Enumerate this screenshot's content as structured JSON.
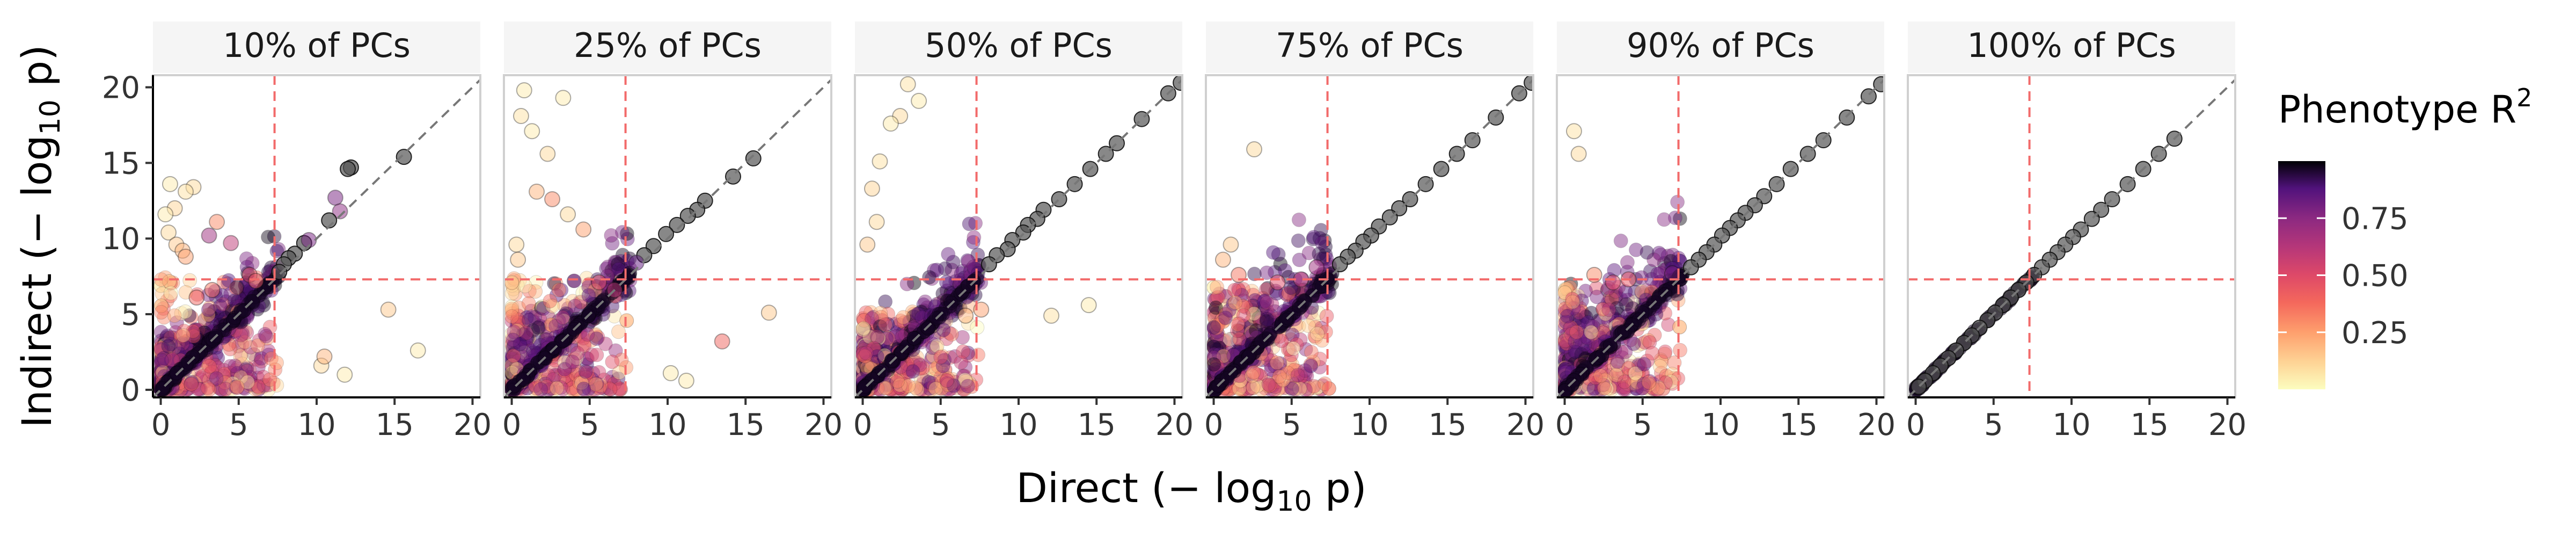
{
  "chart_data": {
    "type": "scatter",
    "facets": [
      "10% of PCs",
      "25% of PCs",
      "50% of PCs",
      "75% of PCs",
      "90% of PCs",
      "100% of PCs"
    ],
    "xlabel": "Direct",
    "xlabel_unit": "(− log10 p)",
    "ylabel": "Indirect",
    "ylabel_unit": "(− log10 p)",
    "xlim": [
      -0.5,
      20.5
    ],
    "ylim": [
      -0.5,
      20.8
    ],
    "x_ticks": [
      "0",
      "5",
      "10",
      "15",
      "20"
    ],
    "y_ticks": [
      "0",
      "5",
      "10",
      "15",
      "20"
    ],
    "significance_threshold": 7.3,
    "reference_line": "y = x",
    "color_scale": {
      "title": "Phenotype R2",
      "palette": "magma",
      "range": [
        0,
        1
      ],
      "ticks": [
        "0.25",
        "0.50",
        "0.75"
      ]
    },
    "points_by_facet": [
      {
        "x": [
          12.2,
          12.0,
          11.2,
          11.5,
          10.8,
          9.2,
          8.6,
          8.2,
          7.9,
          7.6,
          9.5,
          3.1,
          4.5,
          5.7,
          6.1,
          2.1,
          1.6,
          0.9,
          0.6,
          3.6,
          14.6,
          10.3,
          11.8,
          16.5,
          0.3,
          0.5,
          1.0,
          1.4,
          1.6,
          15.6,
          10.5,
          2.3,
          3.3
        ],
        "y": [
          14.7,
          14.6,
          12.7,
          11.8,
          11.2,
          9.7,
          9.0,
          8.7,
          8.3,
          7.8,
          9.9,
          10.2,
          9.7,
          7.6,
          7.2,
          13.4,
          13.1,
          12.0,
          13.6,
          11.1,
          5.3,
          1.6,
          1.0,
          2.6,
          11.6,
          10.4,
          9.6,
          9.2,
          8.8,
          15.4,
          2.2,
          6.1,
          6.6
        ],
        "r": [
          0.95,
          0.9,
          0.8,
          0.75,
          0.95,
          0.9,
          0.95,
          0.9,
          0.95,
          0.9,
          0.8,
          0.7,
          0.6,
          0.5,
          0.45,
          0.1,
          0.08,
          0.12,
          0.05,
          0.3,
          0.15,
          0.1,
          0.05,
          0.05,
          0.05,
          0.1,
          0.15,
          0.2,
          0.25,
          0.9,
          0.2,
          0.4,
          0.35
        ]
      },
      {
        "x": [
          15.5,
          14.2,
          12.4,
          11.9,
          11.3,
          10.6,
          9.9,
          9.1,
          8.5,
          8.0,
          0.8,
          0.6,
          1.3,
          2.3,
          3.3,
          1.6,
          2.6,
          3.6,
          4.6,
          13.5,
          16.5,
          10.2,
          11.2,
          6.6,
          5.6,
          0.3,
          0.4
        ],
        "y": [
          15.3,
          14.1,
          12.5,
          11.9,
          11.5,
          10.9,
          10.3,
          9.5,
          8.9,
          8.4,
          19.8,
          18.1,
          17.1,
          15.6,
          19.3,
          13.1,
          12.6,
          11.6,
          10.6,
          3.2,
          5.1,
          1.1,
          0.6,
          6.6,
          7.1,
          9.6,
          8.6
        ],
        "r": [
          0.9,
          0.9,
          0.95,
          0.9,
          0.95,
          0.9,
          0.95,
          0.9,
          0.9,
          0.85,
          0.05,
          0.08,
          0.05,
          0.1,
          0.05,
          0.2,
          0.3,
          0.1,
          0.25,
          0.4,
          0.15,
          0.05,
          0.05,
          0.6,
          0.5,
          0.1,
          0.15
        ]
      },
      {
        "x": [
          20.4,
          19.6,
          17.9,
          16.3,
          15.6,
          14.6,
          13.6,
          12.6,
          11.6,
          11.2,
          10.6,
          10.3,
          9.6,
          9.3,
          8.6,
          8.1,
          2.9,
          3.6,
          2.4,
          1.8,
          1.1,
          0.6,
          0.9,
          14.5,
          12.1,
          6.6,
          7.6,
          0.3
        ],
        "y": [
          20.3,
          19.6,
          17.9,
          16.3,
          15.6,
          14.6,
          13.6,
          12.6,
          11.9,
          11.3,
          10.9,
          10.4,
          9.9,
          9.3,
          8.9,
          8.3,
          20.2,
          19.1,
          18.1,
          17.6,
          15.1,
          13.3,
          11.1,
          5.6,
          4.9,
          4.9,
          5.3,
          9.6
        ],
        "r": [
          0.95,
          0.9,
          0.95,
          0.9,
          0.95,
          0.9,
          0.95,
          0.9,
          0.95,
          0.9,
          0.95,
          0.9,
          0.95,
          0.9,
          0.95,
          0.9,
          0.08,
          0.05,
          0.1,
          0.05,
          0.08,
          0.12,
          0.1,
          0.05,
          0.08,
          0.2,
          0.25,
          0.15
        ]
      },
      {
        "x": [
          20.4,
          19.6,
          18.1,
          16.6,
          15.6,
          14.6,
          13.6,
          12.6,
          11.9,
          11.3,
          10.6,
          10.1,
          9.6,
          9.1,
          8.6,
          8.1,
          2.6,
          1.1,
          0.6,
          1.6,
          4.1,
          5.6,
          6.6
        ],
        "y": [
          20.3,
          19.6,
          18.0,
          16.5,
          15.6,
          14.6,
          13.6,
          12.6,
          12.0,
          11.4,
          10.8,
          10.2,
          9.8,
          9.2,
          8.8,
          8.3,
          15.9,
          9.6,
          8.6,
          7.6,
          7.1,
          7.3,
          8.1
        ],
        "r": [
          0.95,
          0.9,
          0.95,
          0.9,
          0.95,
          0.9,
          0.95,
          0.9,
          0.95,
          0.9,
          0.95,
          0.9,
          0.95,
          0.9,
          0.95,
          0.9,
          0.1,
          0.15,
          0.2,
          0.35,
          0.5,
          0.6,
          0.7
        ]
      },
      {
        "x": [
          20.3,
          19.5,
          18.1,
          16.6,
          15.6,
          14.5,
          13.6,
          12.8,
          12.2,
          11.6,
          11.1,
          10.6,
          10.1,
          9.6,
          9.1,
          8.6,
          8.1,
          0.6,
          0.9,
          1.9,
          3.1,
          4.1,
          6.9
        ],
        "y": [
          20.2,
          19.4,
          18.0,
          16.5,
          15.6,
          14.6,
          13.6,
          12.8,
          12.2,
          11.7,
          11.2,
          10.7,
          10.2,
          9.6,
          9.1,
          8.6,
          8.1,
          17.1,
          15.6,
          7.6,
          7.1,
          7.3,
          7.7
        ],
        "r": [
          0.95,
          0.9,
          0.95,
          0.9,
          0.95,
          0.9,
          0.95,
          0.9,
          0.95,
          0.9,
          0.95,
          0.9,
          0.95,
          0.9,
          0.95,
          0.9,
          0.95,
          0.08,
          0.1,
          0.3,
          0.5,
          0.45,
          0.8
        ]
      },
      {
        "x": [
          16.6,
          15.6,
          14.6,
          13.6,
          12.6,
          11.9,
          11.3,
          10.6,
          10.1,
          9.6,
          9.1,
          8.6,
          8.1,
          7.6,
          7.1,
          6.6,
          6.1,
          5.6,
          5.1,
          4.6,
          4.1,
          3.6,
          3.1,
          2.6,
          2.1,
          1.6,
          1.1,
          0.6,
          0.2
        ],
        "y": [
          16.6,
          15.6,
          14.6,
          13.6,
          12.6,
          11.9,
          11.3,
          10.6,
          10.1,
          9.6,
          9.1,
          8.6,
          8.1,
          7.6,
          7.1,
          6.6,
          6.1,
          5.6,
          5.1,
          4.6,
          4.1,
          3.6,
          3.1,
          2.6,
          2.1,
          1.6,
          1.1,
          0.6,
          0.2
        ],
        "r": [
          0.95,
          0.95,
          0.95,
          0.95,
          0.95,
          0.95,
          0.95,
          0.95,
          0.95,
          0.95,
          0.95,
          0.95,
          0.95,
          0.95,
          0.95,
          0.95,
          0.95,
          0.95,
          0.95,
          0.95,
          0.95,
          0.95,
          0.95,
          0.95,
          0.95,
          0.95,
          0.95,
          0.95,
          0.95
        ]
      }
    ],
    "cloud_spread_by_facet": [
      {
        "high_r_y": 4.0,
        "low_r_x": 7.5,
        "low_r_y": 7.5
      },
      {
        "high_r_y": 5.0,
        "low_r_x": 7.5,
        "low_r_y": 7.5
      },
      {
        "high_r_y": 4.8,
        "low_r_x": 7.5,
        "low_r_y": 6.0
      },
      {
        "high_r_y": 6.8,
        "low_r_x": 7.5,
        "low_r_y": 6.8
      },
      {
        "high_r_y": 6.8,
        "low_r_x": 7.5,
        "low_r_y": 6.8
      },
      {
        "high_r_y": 0.0,
        "low_r_x": 0.0,
        "low_r_y": 0.0
      }
    ]
  }
}
